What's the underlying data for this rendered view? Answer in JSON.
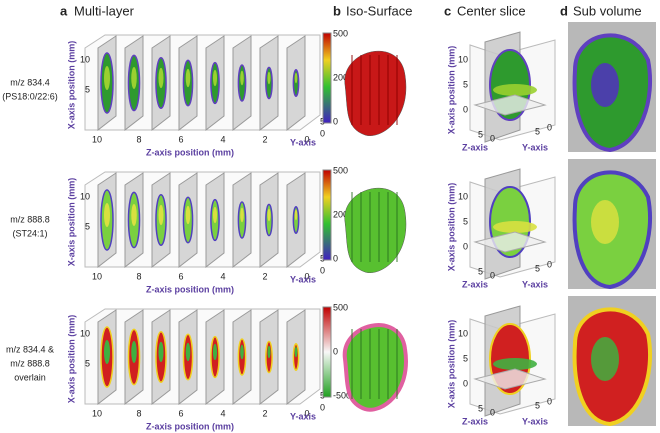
{
  "panels": [
    {
      "letter": "a",
      "title": "Multi-layer"
    },
    {
      "letter": "b",
      "title": "Iso-Surface"
    },
    {
      "letter": "c",
      "title": "Center slice"
    },
    {
      "letter": "d",
      "title": "Sub volume"
    }
  ],
  "rows": [
    {
      "labels": [
        "m/z 834.4",
        "(PS18:0/22:6)"
      ],
      "multilayer": {
        "x_label": "X-axis position (mm)",
        "z_label": "Z-axis position (mm)",
        "y_label": "Y-axis",
        "x_ticks": [
          10,
          5
        ],
        "z_ticks": [
          10,
          8,
          6,
          4,
          2,
          0
        ],
        "y_ticks": [
          5,
          0
        ],
        "colorbar_ticks": [
          500,
          200,
          0
        ]
      },
      "center": {
        "x_label": "X-axis position (mm)",
        "z_label": "Z-axis",
        "y_label": "Y-axis",
        "x_ticks": [
          10,
          5,
          0
        ],
        "z_ticks": [
          5,
          0
        ],
        "y_ticks": [
          5,
          0
        ]
      }
    },
    {
      "labels": [
        "m/z 888.8",
        "(ST24:1)"
      ],
      "multilayer": {
        "x_label": "X-axis position (mm)",
        "z_label": "Z-axis position (mm)",
        "y_label": "Y-axis",
        "x_ticks": [
          10,
          5
        ],
        "z_ticks": [
          10,
          8,
          6,
          4,
          2,
          0
        ],
        "y_ticks": [
          5,
          0
        ],
        "colorbar_ticks": [
          500,
          200,
          0
        ]
      },
      "center": {
        "x_label": "X-axis position (mm)",
        "z_label": "Z-axis",
        "y_label": "Y-axis",
        "x_ticks": [
          10,
          5,
          0
        ],
        "z_ticks": [
          5,
          0
        ],
        "y_ticks": [
          5,
          0
        ]
      }
    },
    {
      "labels": [
        "m/z 834.4 &",
        "m/z 888.8",
        "overlain"
      ],
      "multilayer": {
        "x_label": "X-axis position (mm)",
        "z_label": "Z-axis position (mm)",
        "y_label": "Y-axis",
        "x_ticks": [
          10,
          5
        ],
        "z_ticks": [
          10,
          8,
          6,
          4,
          2,
          0
        ],
        "y_ticks": [
          5,
          0
        ],
        "colorbar_ticks": [
          500,
          0,
          -500
        ]
      },
      "center": {
        "x_label": "X-axis position (mm)",
        "z_label": "Z-axis",
        "y_label": "Y-axis",
        "x_ticks": [
          10,
          5,
          0
        ],
        "z_ticks": [
          5,
          0
        ],
        "y_ticks": [
          5,
          0
        ]
      }
    }
  ]
}
